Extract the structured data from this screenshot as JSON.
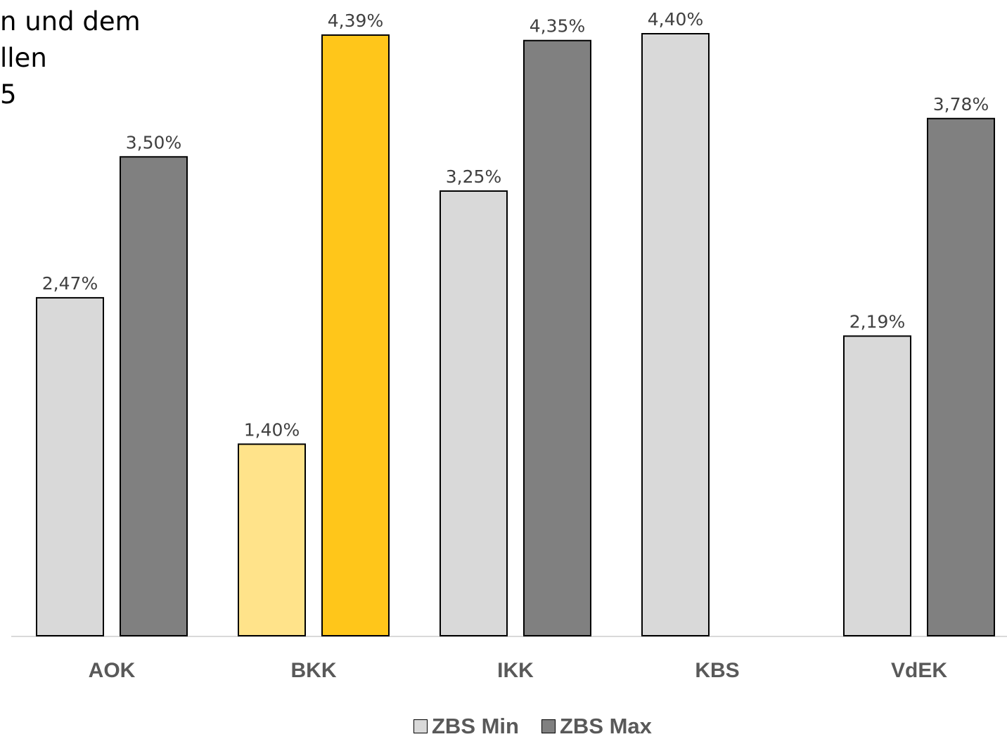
{
  "title_lines": [
    "n und dem",
    "llen",
    "5"
  ],
  "chart_data": {
    "type": "bar",
    "categories": [
      "AOK",
      "BKK",
      "IKK",
      "KBS",
      "VdEK"
    ],
    "series": [
      {
        "name": "ZBS Min",
        "values": [
          2.47,
          1.4,
          3.25,
          4.4,
          2.19
        ],
        "labels": [
          "2,47%",
          "1,40%",
          "3,25%",
          "4,40%",
          "2,19%"
        ]
      },
      {
        "name": "ZBS Max",
        "values": [
          3.5,
          4.39,
          4.35,
          null,
          3.78
        ],
        "labels": [
          "3,50%",
          "4,39%",
          "4,35%",
          "",
          "3,78%"
        ]
      }
    ],
    "ylim": [
      0,
      4.4
    ],
    "grid": false,
    "legend_position": "bottom"
  },
  "colors": {
    "min": "#d9d9d9",
    "max": "#808080",
    "highlight_min": "#ffe38a",
    "highlight_max": "#ffc61a",
    "axis": "#d9d9d9",
    "category_text": "#595959",
    "label_text": "#404040"
  },
  "highlight_category": "BKK"
}
